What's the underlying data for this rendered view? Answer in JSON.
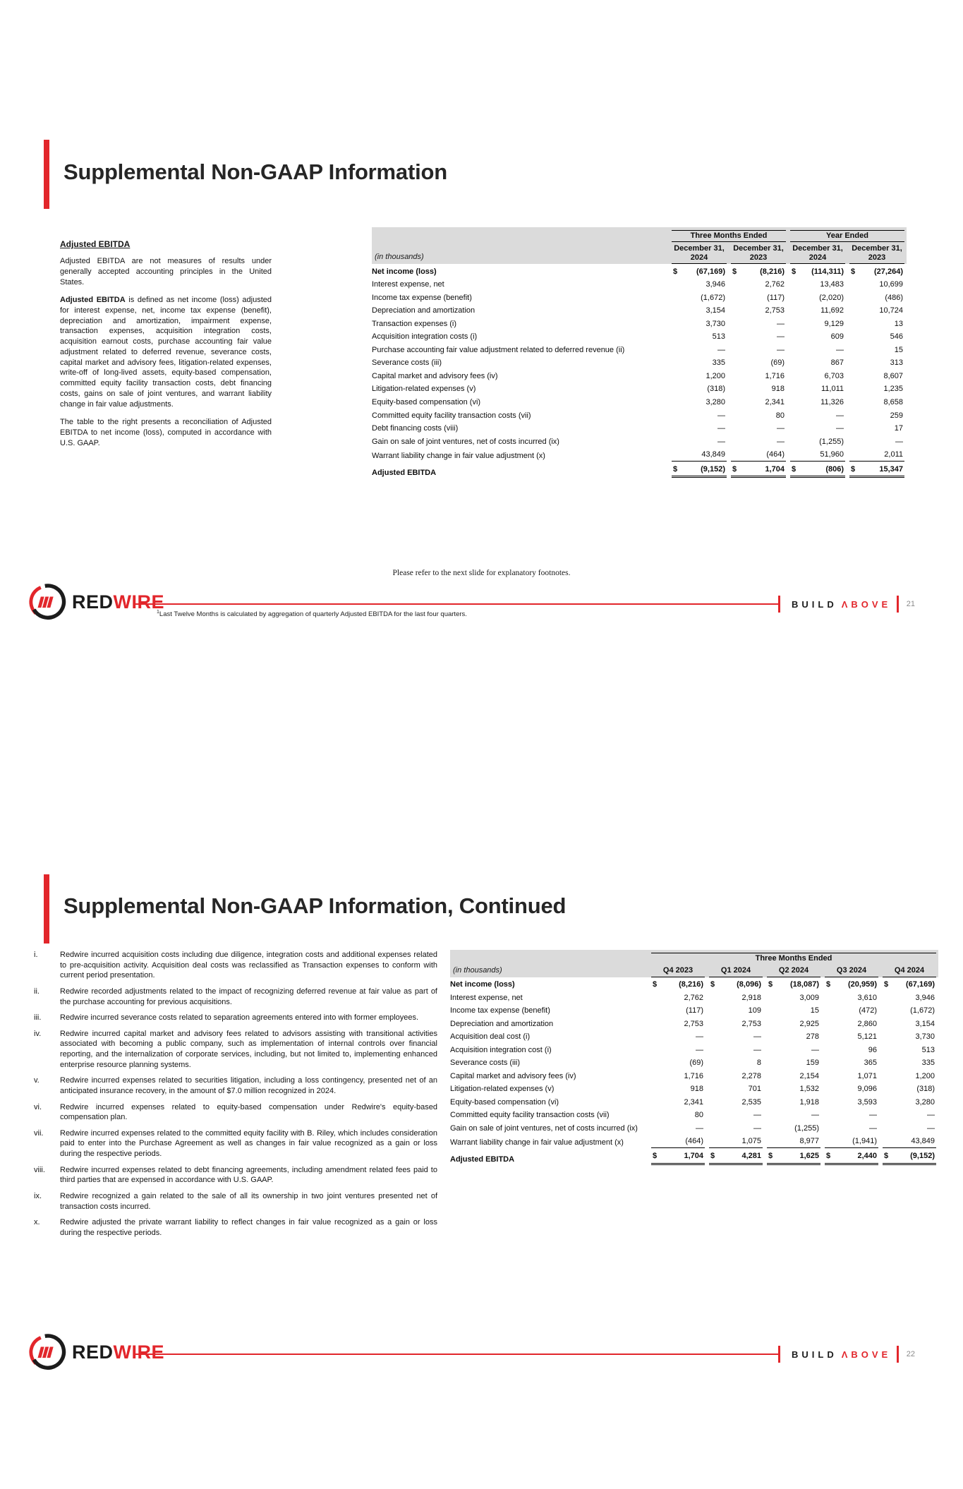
{
  "brand": {
    "accent_color": "#e2262b",
    "logo_text_black": "RED",
    "logo_text_red": "WIRE",
    "tagline_word1": "BUILD",
    "tagline_word2": "ΛBOVE"
  },
  "slide1": {
    "title": "Supplemental Non-GAAP Information",
    "sidebar": {
      "heading": "Adjusted EBITDA",
      "para1": "Adjusted EBITDA are not measures of results under generally accepted accounting principles in the United States.",
      "para2_lead": "Adjusted EBITDA",
      "para2_rest": " is defined as net income (loss) adjusted for interest expense, net, income tax expense (benefit), depreciation and amortization, impairment expense, transaction expenses, acquisition integration costs, acquisition earnout costs, purchase accounting fair value adjustment related to deferred revenue, severance costs, capital market and advisory fees, litigation-related expenses, write-off of long-lived assets, equity-based compensation, committed equity facility transaction costs, debt financing costs, gains on sale of joint ventures, and warrant liability change in fair value adjustments.",
      "para3": "The table to the right presents a reconciliation of Adjusted EBITDA to net income (loss), computed in accordance with U.S. GAAP."
    },
    "table": {
      "units_label": "(in thousands)",
      "currency": "$",
      "group_headers": [
        "Three Months Ended",
        "Year Ended"
      ],
      "col_headers": [
        "December 31, 2024",
        "December 31, 2023",
        "December 31, 2024",
        "December 31, 2023"
      ],
      "rows": [
        {
          "label": "Net income (loss)",
          "bold": true,
          "dollar": true,
          "values": [
            "(67,169)",
            "(8,216)",
            "(114,311)",
            "(27,264)"
          ]
        },
        {
          "label": "Interest expense, net",
          "values": [
            "3,946",
            "2,762",
            "13,483",
            "10,699"
          ]
        },
        {
          "label": "Income tax expense (benefit)",
          "values": [
            "(1,672)",
            "(117)",
            "(2,020)",
            "(486)"
          ]
        },
        {
          "label": "Depreciation and amortization",
          "values": [
            "3,154",
            "2,753",
            "11,692",
            "10,724"
          ]
        },
        {
          "label": "Transaction expenses (i)",
          "values": [
            "3,730",
            "—",
            "9,129",
            "13"
          ]
        },
        {
          "label": "Acquisition integration costs (i)",
          "values": [
            "513",
            "—",
            "609",
            "546"
          ]
        },
        {
          "label": "Purchase accounting fair value adjustment related to deferred revenue (ii)",
          "values": [
            "—",
            "—",
            "—",
            "15"
          ]
        },
        {
          "label": "Severance costs (iii)",
          "values": [
            "335",
            "(69)",
            "867",
            "313"
          ]
        },
        {
          "label": "Capital market and advisory fees (iv)",
          "values": [
            "1,200",
            "1,716",
            "6,703",
            "8,607"
          ]
        },
        {
          "label": "Litigation-related expenses (v)",
          "values": [
            "(318)",
            "918",
            "11,011",
            "1,235"
          ]
        },
        {
          "label": "Equity-based compensation (vi)",
          "values": [
            "3,280",
            "2,341",
            "11,326",
            "8,658"
          ]
        },
        {
          "label": "Committed equity facility transaction costs (vii)",
          "values": [
            "—",
            "80",
            "—",
            "259"
          ]
        },
        {
          "label": "Debt financing costs (viii)",
          "values": [
            "—",
            "—",
            "—",
            "17"
          ]
        },
        {
          "label": "Gain on sale of joint ventures, net of costs incurred (ix)",
          "values": [
            "—",
            "—",
            "(1,255)",
            "—"
          ]
        },
        {
          "label": "Warrant liability change in fair value adjustment (x)",
          "underline": true,
          "values": [
            "43,849",
            "(464)",
            "51,960",
            "2,011"
          ]
        },
        {
          "label": "Adjusted EBITDA",
          "bold": true,
          "dollar": true,
          "total": true,
          "values": [
            "(9,152)",
            "1,704",
            "(806)",
            "15,347"
          ]
        }
      ]
    },
    "note": "Please refer to the next slide for explanatory footnotes.",
    "footnote_sup": "1",
    "footnote": "Last Twelve Months is calculated by aggregation of quarterly Adjusted EBITDA for the last four quarters.",
    "page_number": "21"
  },
  "slide2": {
    "title": "Supplemental Non-GAAP Information, Continued",
    "footnotes": [
      {
        "num": "i.",
        "text": "Redwire incurred acquisition costs including due diligence, integration costs and additional expenses related to pre-acquisition activity. Acquisition deal costs was reclassified as Transaction expenses to conform with current period presentation."
      },
      {
        "num": "ii.",
        "text": "Redwire recorded adjustments related to the impact of recognizing deferred revenue at fair value as part of the purchase accounting for previous acquisitions."
      },
      {
        "num": "iii.",
        "text": "Redwire incurred severance costs related to separation agreements entered into with former employees."
      },
      {
        "num": "iv.",
        "text": "Redwire incurred capital market and advisory fees related to advisors assisting with transitional activities associated with becoming a public company, such as implementation of internal controls over financial reporting, and the internalization of corporate services, including, but not limited to, implementing enhanced enterprise resource planning systems."
      },
      {
        "num": "v.",
        "text": "Redwire incurred expenses related to securities litigation, including a loss contingency, presented net of an anticipated insurance recovery, in the amount of $7.0 million recognized in 2024."
      },
      {
        "num": "vi.",
        "text": "Redwire incurred expenses related to equity-based compensation under Redwire's equity-based compensation plan."
      },
      {
        "num": "vii.",
        "text": "Redwire incurred expenses related to the committed equity facility with B. Riley, which includes consideration paid to enter into the Purchase Agreement as well as changes in fair value recognized as a gain or loss during the respective periods."
      },
      {
        "num": "viii.",
        "text": "Redwire incurred expenses related to debt financing agreements, including amendment related fees paid to third parties that are expensed in accordance with U.S. GAAP."
      },
      {
        "num": "ix.",
        "text": "Redwire recognized a gain related to the sale of all its ownership in two joint ventures presented net of transaction costs incurred."
      },
      {
        "num": "x.",
        "text": "Redwire adjusted the private warrant liability to reflect changes in fair value recognized as a gain or loss during the respective periods."
      }
    ],
    "table": {
      "units_label": "(in thousands)",
      "currency": "$",
      "group_header": "Three Months Ended",
      "col_headers": [
        "Q4 2023",
        "Q1 2024",
        "Q2 2024",
        "Q3 2024",
        "Q4 2024"
      ],
      "rows": [
        {
          "label": "Net income (loss)",
          "bold": true,
          "dollar": true,
          "values": [
            "(8,216)",
            "(8,096)",
            "(18,087)",
            "(20,959)",
            "(67,169)"
          ]
        },
        {
          "label": "Interest expense, net",
          "values": [
            "2,762",
            "2,918",
            "3,009",
            "3,610",
            "3,946"
          ]
        },
        {
          "label": "Income tax expense (benefit)",
          "values": [
            "(117)",
            "109",
            "15",
            "(472)",
            "(1,672)"
          ]
        },
        {
          "label": "Depreciation and amortization",
          "values": [
            "2,753",
            "2,753",
            "2,925",
            "2,860",
            "3,154"
          ]
        },
        {
          "label": "Acquisition deal cost (i)",
          "values": [
            "—",
            "—",
            "278",
            "5,121",
            "3,730"
          ]
        },
        {
          "label": "Acquisition integration cost (i)",
          "values": [
            "—",
            "—",
            "—",
            "96",
            "513"
          ]
        },
        {
          "label": "Severance costs (iii)",
          "values": [
            "(69)",
            "8",
            "159",
            "365",
            "335"
          ]
        },
        {
          "label": "Capital market and advisory fees (iv)",
          "values": [
            "1,716",
            "2,278",
            "2,154",
            "1,071",
            "1,200"
          ]
        },
        {
          "label": "Litigation-related expenses (v)",
          "values": [
            "918",
            "701",
            "1,532",
            "9,096",
            "(318)"
          ]
        },
        {
          "label": "Equity-based compensation (vi)",
          "values": [
            "2,341",
            "2,535",
            "1,918",
            "3,593",
            "3,280"
          ]
        },
        {
          "label": "Committed equity facility transaction costs (vii)",
          "values": [
            "80",
            "—",
            "—",
            "—",
            "—"
          ]
        },
        {
          "label": "Gain on sale of joint ventures, net of costs incurred (ix)",
          "values": [
            "—",
            "—",
            "(1,255)",
            "—",
            "—"
          ]
        },
        {
          "label": "Warrant liability change in fair value adjustment (x)",
          "underline": true,
          "values": [
            "(464)",
            "1,075",
            "8,977",
            "(1,941)",
            "43,849"
          ]
        },
        {
          "label": "Adjusted EBITDA",
          "bold": true,
          "dollar": true,
          "total": true,
          "values": [
            "1,704",
            "4,281",
            "1,625",
            "2,440",
            "(9,152)"
          ]
        }
      ]
    },
    "page_number": "22"
  }
}
